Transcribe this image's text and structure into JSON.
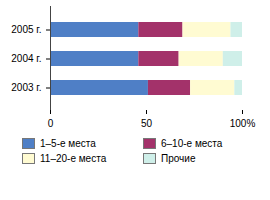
{
  "chart_data": {
    "type": "bar",
    "orientation": "horizontal",
    "stacked": true,
    "categories": [
      "2005 г.",
      "2004 г.",
      "2003 г."
    ],
    "series": [
      {
        "name": "1–5-е места",
        "color": "#4f7fc6",
        "values": [
          46,
          46,
          51
        ]
      },
      {
        "name": "6–10-е места",
        "color": "#a3326a",
        "values": [
          23,
          21,
          22
        ]
      },
      {
        "name": "11–20-е места",
        "color": "#fffbd2",
        "values": [
          25,
          23,
          23
        ]
      },
      {
        "name": "Прочие",
        "color": "#cfefe9",
        "values": [
          6,
          10,
          4
        ]
      }
    ],
    "xlim": [
      0,
      100
    ],
    "xticks": [
      0,
      50,
      {
        "value": 100,
        "label": "100%"
      }
    ],
    "legend": "bottom",
    "grid": false
  }
}
